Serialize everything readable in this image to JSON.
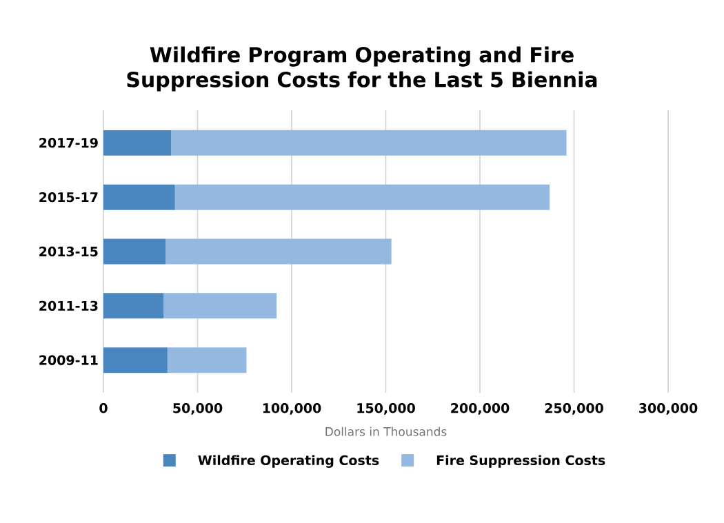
{
  "chart_data": {
    "type": "bar",
    "orientation": "horizontal",
    "stacked": true,
    "title": "Wildfire Program Operating and Fire Suppression Costs for the Last 5 Biennia",
    "xlabel": "Dollars in Thousands",
    "categories": [
      "2017-19",
      "2015-17",
      "2013-15",
      "2011-13",
      "2009-11"
    ],
    "series": [
      {
        "name": "Wildfire Operating Costs",
        "color": "#4a86c0",
        "values": [
          36000,
          38000,
          33000,
          32000,
          34000
        ]
      },
      {
        "name": "Fire Suppression Costs",
        "color": "#95b8e0",
        "values": [
          210000,
          199000,
          120000,
          60000,
          42000
        ]
      }
    ],
    "xlim": [
      0,
      300000
    ],
    "xticks": [
      0,
      {
        "value": 50000,
        "label": "50,000"
      },
      {
        "value": 100000,
        "label": "100,000"
      },
      {
        "value": 150000,
        "label": "150,000"
      },
      {
        "value": 200000,
        "label": "200,000"
      },
      {
        "value": 250000,
        "label": "250,000"
      },
      {
        "value": 300000,
        "label": "300,000"
      }
    ],
    "grid": "x",
    "legend": "bottom"
  }
}
